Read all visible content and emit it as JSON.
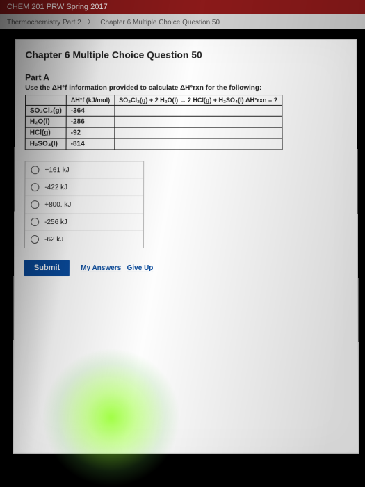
{
  "course": "CHEM 201 PRW Spring 2017",
  "breadcrumb": {
    "part": "Thermochemistry Part 2",
    "question": "Chapter 6 Multiple Choice Question 50"
  },
  "title": "Chapter 6 Multiple Choice Question 50",
  "part": "Part A",
  "prompt": "Use the ΔH°f information provided to calculate ΔH°rxn for the following:",
  "table": {
    "header1": "",
    "header2": "ΔH°f (kJ/mol)",
    "equation": "SO₂Cl₂(g) + 2 H₂O(l) → 2 HCl(g) + H₂SO₄(l)   ΔH°rxn = ?",
    "rows": [
      {
        "species": "SO₂Cl₂(g)",
        "value": "-364"
      },
      {
        "species": "H₂O(l)",
        "value": "-286"
      },
      {
        "species": "HCl(g)",
        "value": "-92"
      },
      {
        "species": "H₂SO₄(l)",
        "value": "-814"
      }
    ]
  },
  "choices": [
    "+161 kJ",
    "-422 kJ",
    "+800. kJ",
    "-256 kJ",
    "-62 kJ"
  ],
  "buttons": {
    "submit": "Submit",
    "myanswers": "My Answers",
    "giveup": "Give Up"
  }
}
